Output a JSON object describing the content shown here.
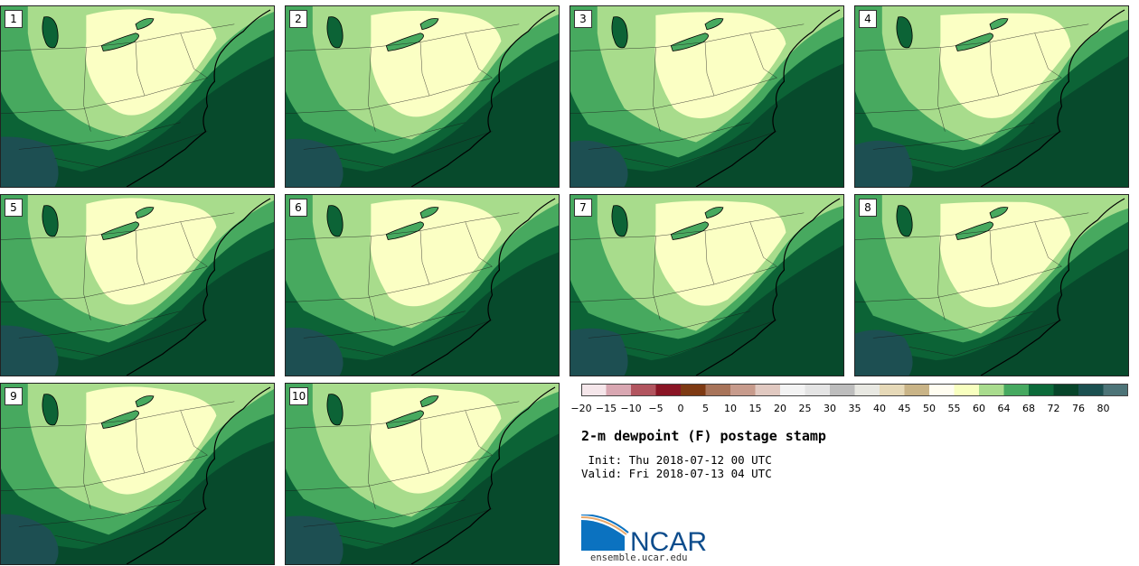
{
  "panels": [
    {
      "label": "1"
    },
    {
      "label": "2"
    },
    {
      "label": "3"
    },
    {
      "label": "4"
    },
    {
      "label": "5"
    },
    {
      "label": "6"
    },
    {
      "label": "7"
    },
    {
      "label": "8"
    },
    {
      "label": "9"
    },
    {
      "label": "10"
    }
  ],
  "colorbar": {
    "ticks": [
      "−20",
      "−15",
      "−10",
      "−5",
      "0",
      "5",
      "10",
      "15",
      "20",
      "25",
      "30",
      "35",
      "40",
      "45",
      "50",
      "55",
      "60",
      "64",
      "68",
      "72",
      "76",
      "80"
    ],
    "colors": [
      "#f5e6ea",
      "#d9a7b2",
      "#b2555f",
      "#8a1525",
      "#7e3a13",
      "#a8745a",
      "#c79b8c",
      "#e1c9c1",
      "#f3f3f3",
      "#e4e4e4",
      "#bdbdbd",
      "#e8e8e2",
      "#e6d9b8",
      "#c9b487",
      "#fffdf0",
      "#f8ffbf",
      "#a9dc8e",
      "#46a960",
      "#0c6a3a",
      "#07452a",
      "#1b5050",
      "#4d7478"
    ]
  },
  "title": "2-m dewpoint (F) postage stamp",
  "init": " Init: Thu 2018-07-12 00 UTC",
  "valid": "Valid: Fri 2018-07-13 04 UTC",
  "logo": {
    "text": "NCAR",
    "url": "ensemble.ucar.edu",
    "blue": "#0b72c0"
  },
  "map_colors": {
    "c55": "#fbffc4",
    "c60": "#a8dc8c",
    "c64": "#47a95f",
    "c68": "#0c6336",
    "c72": "#074a2c",
    "c76": "#1d4f52"
  }
}
